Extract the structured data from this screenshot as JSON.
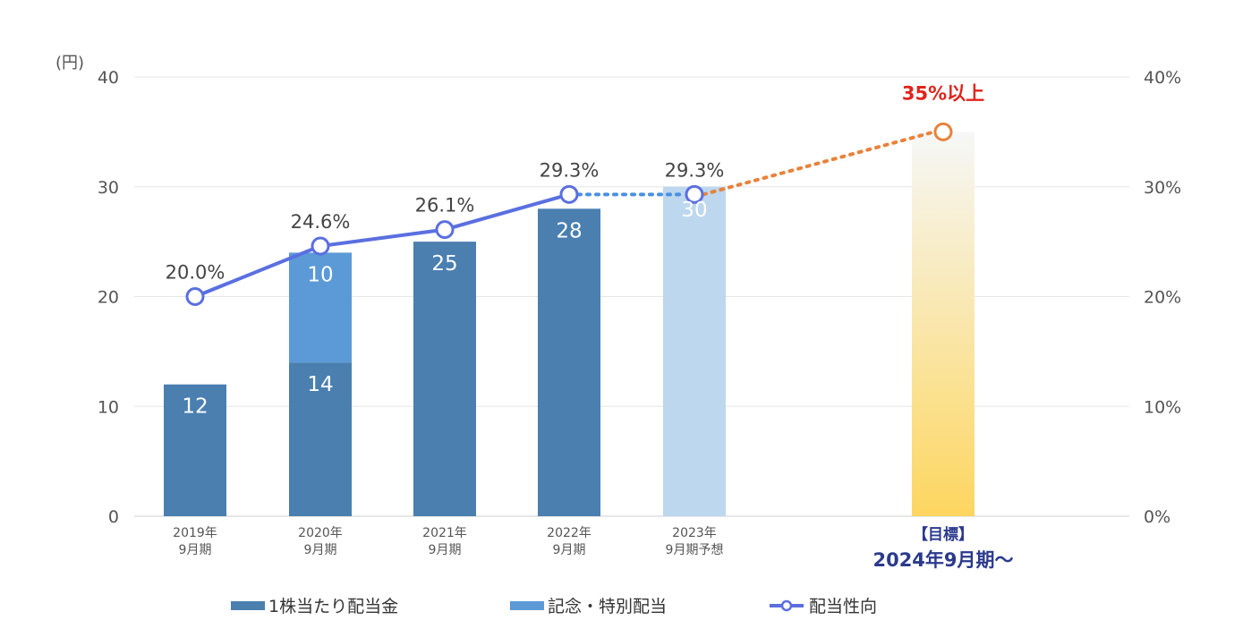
{
  "chart_data": {
    "type": "bar",
    "y_left_unit": "(円)",
    "y_left_ticks": [
      "0",
      "10",
      "20",
      "30",
      "40"
    ],
    "y_right_ticks": [
      "0%",
      "10%",
      "20%",
      "30%",
      "40%"
    ],
    "ylim": [
      0,
      40
    ],
    "ylim_right": [
      0,
      40
    ],
    "grid": true,
    "legend_position": "bottom",
    "categories": [
      {
        "line1": "2019年",
        "line2": "9月期"
      },
      {
        "line1": "2020年",
        "line2": "9月期"
      },
      {
        "line1": "2021年",
        "line2": "9月期"
      },
      {
        "line1": "2022年",
        "line2": "9月期"
      },
      {
        "line1": "2023年",
        "line2": "9月期予想"
      }
    ],
    "target_category": {
      "line1": "【目標】",
      "line2": "2024年9月期～"
    },
    "series": [
      {
        "name": "1株当たり配当金",
        "kind": "bar",
        "color": "#4a7fb0",
        "values": [
          12,
          14,
          25,
          28,
          null
        ],
        "labels": [
          "12",
          "14",
          "25",
          "28",
          ""
        ]
      },
      {
        "name": "記念・特別配当",
        "kind": "bar-stacked",
        "color": "#5b9ad6",
        "values": [
          0,
          10,
          0,
          0,
          0
        ],
        "labels": [
          "",
          "10",
          "",
          "",
          ""
        ]
      },
      {
        "name": "配当性向",
        "kind": "line",
        "color": "#5a6fe0",
        "values": [
          20.0,
          24.6,
          26.1,
          29.3,
          29.3
        ],
        "labels": [
          "20.0%",
          "24.6%",
          "26.1%",
          "29.3%",
          "29.3%"
        ]
      }
    ],
    "forecast_bar": {
      "value": 30,
      "label": "30",
      "color": "#bdd7ee"
    },
    "target": {
      "value": 35,
      "label": "35%以上",
      "color": "#e8823a",
      "label_color": "#e0241b",
      "bar_value": 35,
      "bar_color_top": "#f6f7f7",
      "bar_color_bottom": "#fdd660"
    },
    "legend": [
      {
        "name": "1株当たり配当金",
        "color": "#4a7fb0",
        "style": "bar"
      },
      {
        "name": "記念・特別配当",
        "color": "#5b9ad6",
        "style": "bar"
      },
      {
        "name": "配当性向",
        "color": "#5a6fe0",
        "style": "line-marker"
      }
    ],
    "colors": {
      "axis_text": "#555555",
      "value_text": "#444444",
      "target_text": "#2b3a8c",
      "grid": "#e6e6e6",
      "bar_label": "#ffffff",
      "forecast_line": "#4a90e2"
    }
  }
}
